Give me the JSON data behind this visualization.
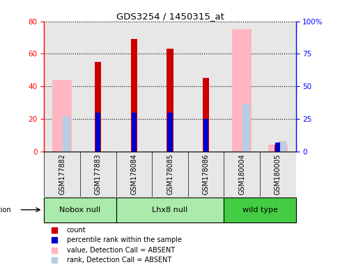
{
  "title": "GDS3254 / 1450315_at",
  "samples": [
    "GSM177882",
    "GSM177883",
    "GSM178084",
    "GSM178085",
    "GSM178086",
    "GSM180004",
    "GSM180005"
  ],
  "count_values": [
    0,
    55,
    69,
    63,
    45,
    0,
    4
  ],
  "percentile_rank": [
    0,
    30,
    30,
    30,
    25,
    0,
    7
  ],
  "absent_value": [
    44,
    0,
    0,
    0,
    0,
    75,
    4
  ],
  "absent_rank": [
    27,
    0,
    0,
    0,
    0,
    36,
    8
  ],
  "group_defs": [
    {
      "label": "Nobox null",
      "start": 0,
      "end": 1,
      "color": "#aaeaaa"
    },
    {
      "label": "Lhx8 null",
      "start": 2,
      "end": 4,
      "color": "#aaeaaa"
    },
    {
      "label": "wild type",
      "start": 5,
      "end": 6,
      "color": "#44cc44"
    }
  ],
  "ylim_left": [
    0,
    80
  ],
  "ylim_right": [
    0,
    100
  ],
  "yticks_left": [
    0,
    20,
    40,
    60,
    80
  ],
  "yticks_right": [
    0,
    25,
    50,
    75,
    100
  ],
  "count_color": "#cc0000",
  "rank_color": "#0000cc",
  "absent_value_color": "#ffb6c1",
  "absent_rank_color": "#b8cce4",
  "col_bg_color": "#d0d0d0",
  "bg_color": "white",
  "legend_items": [
    {
      "color": "#cc0000",
      "label": "count"
    },
    {
      "color": "#0000cc",
      "label": "percentile rank within the sample"
    },
    {
      "color": "#ffb6c1",
      "label": "value, Detection Call = ABSENT"
    },
    {
      "color": "#b8cce4",
      "label": "rank, Detection Call = ABSENT"
    }
  ]
}
